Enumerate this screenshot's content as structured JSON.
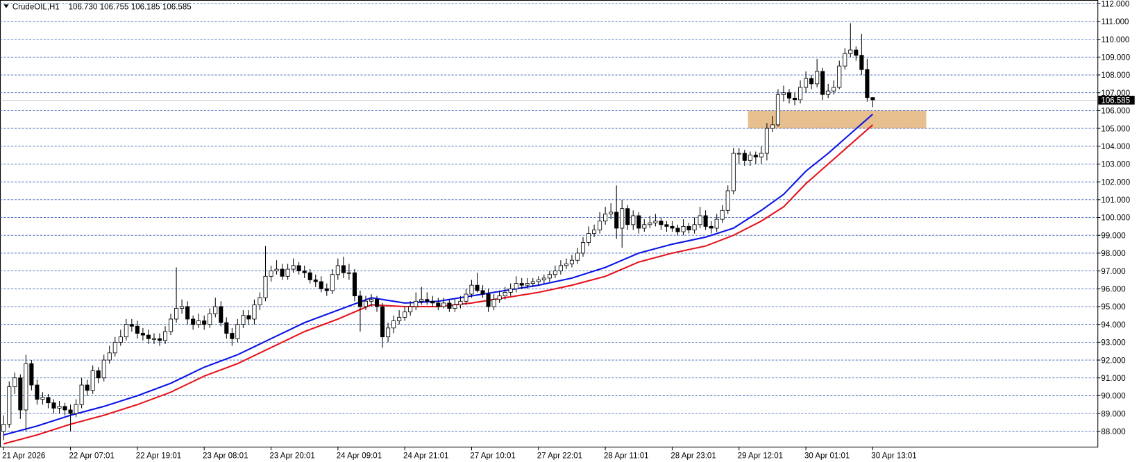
{
  "chart_data": {
    "type": "candlestick",
    "symbol": "CrudeOIL,H1",
    "header_ohlc": [
      "106.730",
      "106.755",
      "106.185",
      "106.585"
    ],
    "categories": [
      "21 Apr 2026",
      null,
      null,
      null,
      null,
      null,
      null,
      null,
      null,
      null,
      null,
      null,
      "22 Apr 07:01",
      null,
      null,
      null,
      null,
      null,
      null,
      null,
      null,
      null,
      null,
      null,
      "22 Apr 19:01",
      null,
      null,
      null,
      null,
      null,
      null,
      null,
      null,
      null,
      null,
      null,
      "23 Apr 08:01",
      null,
      null,
      null,
      null,
      null,
      null,
      null,
      null,
      null,
      null,
      null,
      "23 Apr 20:01",
      null,
      null,
      null,
      null,
      null,
      null,
      null,
      null,
      null,
      null,
      null,
      "24 Apr 09:01",
      null,
      null,
      null,
      null,
      null,
      null,
      null,
      null,
      null,
      null,
      null,
      "24 Apr 21:01",
      null,
      null,
      null,
      null,
      null,
      null,
      null,
      null,
      null,
      null,
      null,
      "27 Apr 10:01",
      null,
      null,
      null,
      null,
      null,
      null,
      null,
      null,
      null,
      null,
      null,
      "27 Apr 22:01",
      null,
      null,
      null,
      null,
      null,
      null,
      null,
      null,
      null,
      null,
      null,
      "28 Apr 11:01",
      null,
      null,
      null,
      null,
      null,
      null,
      null,
      null,
      null,
      null,
      null,
      "28 Apr 23:01",
      null,
      null,
      null,
      null,
      null,
      null,
      null,
      null,
      null,
      null,
      null,
      "29 Apr 12:01",
      null,
      null,
      null,
      null,
      null,
      null,
      null,
      null,
      null,
      null,
      null,
      "30 Apr 01:01",
      null,
      null,
      null,
      null,
      null,
      null,
      null,
      null,
      null,
      null,
      null,
      "30 Apr 13:01"
    ],
    "open": [
      88.0,
      88.4,
      90.5,
      91.0,
      89.2,
      91.8,
      90.6,
      89.8,
      89.9,
      89.6,
      89.3,
      89.4,
      89.2,
      89.0,
      89.5,
      90.6,
      90.3,
      91.4,
      91.0,
      92.0,
      92.4,
      93.0,
      93.3,
      94.0,
      93.9,
      93.5,
      93.4,
      93.2,
      93.2,
      93.1,
      93.6,
      94.3,
      94.9,
      95.0,
      94.3,
      94.0,
      94.2,
      94.0,
      94.6,
      95.0,
      94.1,
      93.5,
      93.2,
      94.0,
      94.5,
      94.3,
      95.1,
      95.5,
      96.7,
      97.0,
      97.1,
      96.7,
      97.1,
      97.3,
      97.0,
      96.9,
      96.5,
      96.4,
      96.0,
      95.9,
      96.8,
      97.3,
      96.9,
      96.9,
      95.6,
      95.0,
      95.3,
      95.4,
      95.0,
      93.3,
      93.8,
      94.2,
      94.4,
      94.7,
      95.0,
      95.3,
      95.4,
      95.3,
      95.2,
      95.0,
      95.2,
      94.9,
      95.1,
      95.3,
      95.7,
      96.2,
      95.9,
      95.7,
      95.0,
      95.4,
      95.6,
      95.8,
      96.0,
      96.3,
      96.2,
      96.3,
      96.4,
      96.5,
      96.6,
      96.8,
      97.0,
      97.3,
      97.4,
      97.6,
      98.0,
      98.6,
      99.1,
      99.3,
      99.8,
      100.2,
      100.3,
      99.4,
      100.5,
      99.6,
      100.1,
      99.4,
      99.6,
      99.7,
      99.8,
      99.6,
      99.5,
      99.4,
      99.2,
      99.5,
      99.3,
      99.6,
      100.1,
      99.5,
      99.4,
      99.9,
      100.4,
      101.5,
      103.6,
      103.6,
      103.2,
      103.5,
      103.4,
      103.6,
      105.0,
      105.2,
      106.9,
      107.0,
      106.7,
      106.6,
      107.3,
      107.8,
      107.5,
      108.2,
      106.9,
      107.1,
      107.3,
      108.5,
      109.2,
      109.4,
      109.1,
      108.3,
      106.73
    ],
    "high": [
      88.9,
      90.8,
      91.3,
      91.2,
      92.3,
      92.0,
      90.9,
      90.2,
      90.1,
      89.8,
      89.7,
      89.6,
      89.5,
      89.8,
      91.0,
      90.9,
      91.7,
      91.6,
      92.3,
      92.8,
      93.3,
      93.7,
      94.3,
      94.3,
      94.2,
      93.8,
      93.7,
      93.5,
      93.5,
      93.9,
      94.6,
      97.2,
      95.4,
      95.3,
      94.5,
      94.6,
      94.5,
      94.9,
      95.5,
      95.3,
      94.4,
      93.8,
      94.3,
      94.8,
      94.8,
      95.4,
      95.8,
      98.4,
      97.3,
      97.6,
      97.4,
      97.4,
      97.7,
      97.5,
      97.3,
      97.1,
      96.8,
      96.7,
      96.3,
      97.1,
      97.7,
      97.8,
      97.4,
      97.1,
      95.9,
      95.6,
      95.7,
      95.6,
      95.2,
      94.1,
      94.5,
      94.8,
      95.0,
      95.3,
      95.8,
      96.1,
      95.8,
      95.6,
      95.5,
      95.5,
      95.4,
      95.4,
      95.6,
      96.0,
      96.5,
      96.9,
      96.2,
      96.0,
      95.7,
      95.9,
      96.1,
      96.3,
      96.7,
      96.6,
      96.6,
      96.6,
      96.7,
      96.8,
      97.0,
      97.3,
      97.6,
      97.7,
      97.9,
      98.3,
      98.9,
      99.5,
      99.6,
      100.3,
      100.6,
      100.8,
      101.8,
      101.0,
      100.7,
      100.4,
      100.3,
      99.9,
      100.1,
      100.2,
      100.0,
      99.8,
      99.8,
      99.6,
      99.9,
      99.7,
      100.0,
      100.6,
      100.4,
      99.8,
      100.2,
      100.7,
      101.8,
      103.9,
      103.9,
      103.8,
      103.7,
      103.7,
      104.0,
      105.3,
      105.7,
      107.2,
      107.4,
      107.2,
      107.0,
      107.7,
      108.2,
      108.0,
      108.9,
      108.4,
      107.5,
      107.7,
      108.8,
      109.5,
      110.9,
      109.6,
      110.3,
      108.9,
      106.755
    ],
    "low": [
      87.5,
      88.2,
      90.1,
      88.7,
      88.0,
      90.3,
      89.5,
      89.5,
      89.3,
      89.0,
      89.0,
      88.9,
      88.0,
      88.8,
      89.3,
      90.0,
      90.1,
      90.7,
      90.8,
      91.8,
      92.2,
      92.8,
      93.1,
      93.6,
      93.2,
      93.1,
      92.9,
      92.9,
      92.8,
      92.9,
      93.4,
      94.1,
      94.6,
      94.0,
      93.7,
      93.8,
      93.7,
      93.8,
      94.4,
      93.9,
      93.2,
      92.8,
      93.0,
      93.8,
      94.0,
      94.0,
      94.8,
      95.3,
      96.4,
      96.8,
      96.5,
      96.5,
      96.9,
      96.8,
      96.6,
      96.3,
      96.1,
      95.8,
      95.6,
      95.7,
      96.5,
      96.6,
      96.5,
      95.3,
      93.6,
      94.8,
      95.0,
      94.7,
      92.7,
      93.0,
      93.5,
      94.0,
      94.2,
      94.5,
      94.8,
      95.1,
      95.1,
      95.0,
      94.8,
      94.9,
      94.7,
      94.7,
      94.9,
      95.1,
      95.5,
      95.8,
      95.5,
      94.7,
      94.8,
      95.2,
      95.4,
      95.6,
      95.8,
      96.0,
      96.0,
      96.1,
      96.2,
      96.3,
      96.4,
      96.6,
      96.8,
      97.1,
      97.2,
      97.4,
      97.8,
      98.4,
      98.9,
      99.1,
      99.6,
      99.9,
      98.8,
      98.3,
      99.3,
      99.3,
      99.1,
      99.2,
      99.4,
      99.5,
      99.3,
      99.2,
      99.2,
      99.0,
      99.0,
      99.1,
      99.1,
      99.4,
      99.3,
      99.1,
      99.2,
      99.7,
      100.2,
      101.3,
      103.0,
      102.9,
      102.9,
      103.0,
      103.0,
      103.2,
      104.8,
      105.1,
      106.5,
      106.4,
      106.3,
      106.4,
      107.0,
      107.2,
      107.3,
      106.6,
      106.7,
      106.9,
      107.2,
      108.3,
      109.0,
      108.8,
      108.0,
      106.5,
      106.185
    ],
    "close": [
      88.4,
      90.5,
      91.0,
      89.2,
      91.8,
      90.6,
      89.8,
      89.9,
      89.6,
      89.3,
      89.4,
      89.2,
      89.0,
      89.5,
      90.6,
      90.3,
      91.4,
      91.0,
      92.0,
      92.4,
      93.0,
      93.3,
      94.0,
      93.9,
      93.5,
      93.4,
      93.2,
      93.2,
      93.1,
      93.6,
      94.3,
      94.9,
      95.0,
      94.3,
      94.0,
      94.2,
      94.0,
      94.6,
      95.0,
      94.1,
      93.5,
      93.2,
      94.0,
      94.5,
      94.3,
      95.1,
      95.5,
      96.7,
      97.0,
      97.1,
      96.7,
      97.1,
      97.3,
      97.0,
      96.9,
      96.5,
      96.4,
      96.0,
      95.9,
      96.8,
      97.3,
      96.9,
      96.9,
      95.6,
      95.0,
      95.3,
      95.4,
      95.0,
      93.3,
      93.8,
      94.2,
      94.4,
      94.7,
      95.0,
      95.3,
      95.4,
      95.3,
      95.2,
      95.0,
      95.2,
      94.9,
      95.1,
      95.3,
      95.7,
      96.2,
      95.9,
      95.7,
      95.0,
      95.4,
      95.6,
      95.8,
      96.0,
      96.3,
      96.2,
      96.3,
      96.4,
      96.5,
      96.6,
      96.8,
      97.0,
      97.3,
      97.4,
      97.6,
      98.0,
      98.6,
      99.1,
      99.3,
      99.8,
      100.2,
      100.3,
      99.4,
      100.5,
      99.6,
      100.1,
      99.4,
      99.6,
      99.7,
      99.8,
      99.6,
      99.5,
      99.4,
      99.2,
      99.5,
      99.3,
      99.6,
      100.1,
      99.5,
      99.4,
      99.9,
      100.4,
      101.5,
      103.6,
      103.6,
      103.2,
      103.5,
      103.4,
      103.6,
      105.0,
      105.2,
      106.9,
      107.0,
      106.7,
      106.6,
      107.3,
      107.8,
      107.5,
      108.2,
      106.9,
      107.1,
      107.3,
      108.5,
      109.2,
      109.4,
      109.1,
      108.3,
      106.73,
      106.585
    ],
    "lines": [
      {
        "color": "#0a14e6",
        "x": [
          0,
          6,
          12,
          18,
          24,
          30,
          36,
          42,
          48,
          54,
          60,
          66,
          72,
          78,
          84,
          90,
          96,
          102,
          108,
          114,
          120,
          126,
          131,
          136,
          140,
          144,
          148,
          152,
          156
        ],
        "values": [
          87.8,
          88.3,
          88.9,
          89.4,
          90.0,
          90.7,
          91.6,
          92.3,
          93.2,
          94.1,
          94.8,
          95.5,
          95.2,
          95.3,
          95.6,
          95.9,
          96.2,
          96.6,
          97.2,
          98.0,
          98.5,
          98.9,
          99.4,
          100.4,
          101.3,
          102.6,
          103.6,
          104.7,
          105.8
        ]
      },
      {
        "color": "#e6141e",
        "x": [
          0,
          6,
          12,
          18,
          24,
          30,
          36,
          42,
          48,
          54,
          60,
          66,
          72,
          78,
          84,
          90,
          96,
          102,
          108,
          114,
          120,
          126,
          131,
          136,
          140,
          144,
          148,
          152,
          156
        ],
        "values": [
          87.3,
          87.8,
          88.4,
          88.9,
          89.5,
          90.2,
          91.1,
          91.8,
          92.7,
          93.6,
          94.3,
          95.1,
          95.0,
          95.0,
          95.2,
          95.5,
          95.8,
          96.2,
          96.7,
          97.5,
          98.0,
          98.4,
          99.0,
          99.8,
          100.6,
          101.9,
          103.0,
          104.1,
          105.2
        ]
      }
    ],
    "zone": {
      "from": 105,
      "to": 106,
      "x_start": 133.6,
      "x_end": 165.6,
      "color": "#e6b882"
    },
    "ylim": [
      88,
      112
    ],
    "yticks": [
      {
        "value": 88,
        "label": "88.000"
      },
      {
        "value": 89,
        "label": "89.000"
      },
      {
        "value": 90,
        "label": "90.000"
      },
      {
        "value": 91,
        "label": "91.000"
      },
      {
        "value": 92,
        "label": "92.000"
      },
      {
        "value": 93,
        "label": "93.000"
      },
      {
        "value": 94,
        "label": "94.000"
      },
      {
        "value": 95,
        "label": "95.000"
      },
      {
        "value": 96,
        "label": "96.000"
      },
      {
        "value": 97,
        "label": "97.000"
      },
      {
        "value": 98,
        "label": "98.000"
      },
      {
        "value": 99,
        "label": "99.000"
      },
      {
        "value": 100,
        "label": "100.000"
      },
      {
        "value": 101,
        "label": "101.000"
      },
      {
        "value": 102,
        "label": "102.000"
      },
      {
        "value": 103,
        "label": "103.000"
      },
      {
        "value": 104,
        "label": "104.000"
      },
      {
        "value": 105,
        "label": "105.000"
      },
      {
        "value": 106,
        "label": "106.000"
      },
      {
        "value": 107,
        "label": "107.000"
      },
      {
        "value": 108,
        "label": "108.000"
      },
      {
        "value": 109,
        "label": "109.000"
      },
      {
        "value": 110,
        "label": "110.000"
      },
      {
        "value": 111,
        "label": "111.000"
      },
      {
        "value": 112,
        "label": "112.000"
      }
    ],
    "grid": true
  }
}
